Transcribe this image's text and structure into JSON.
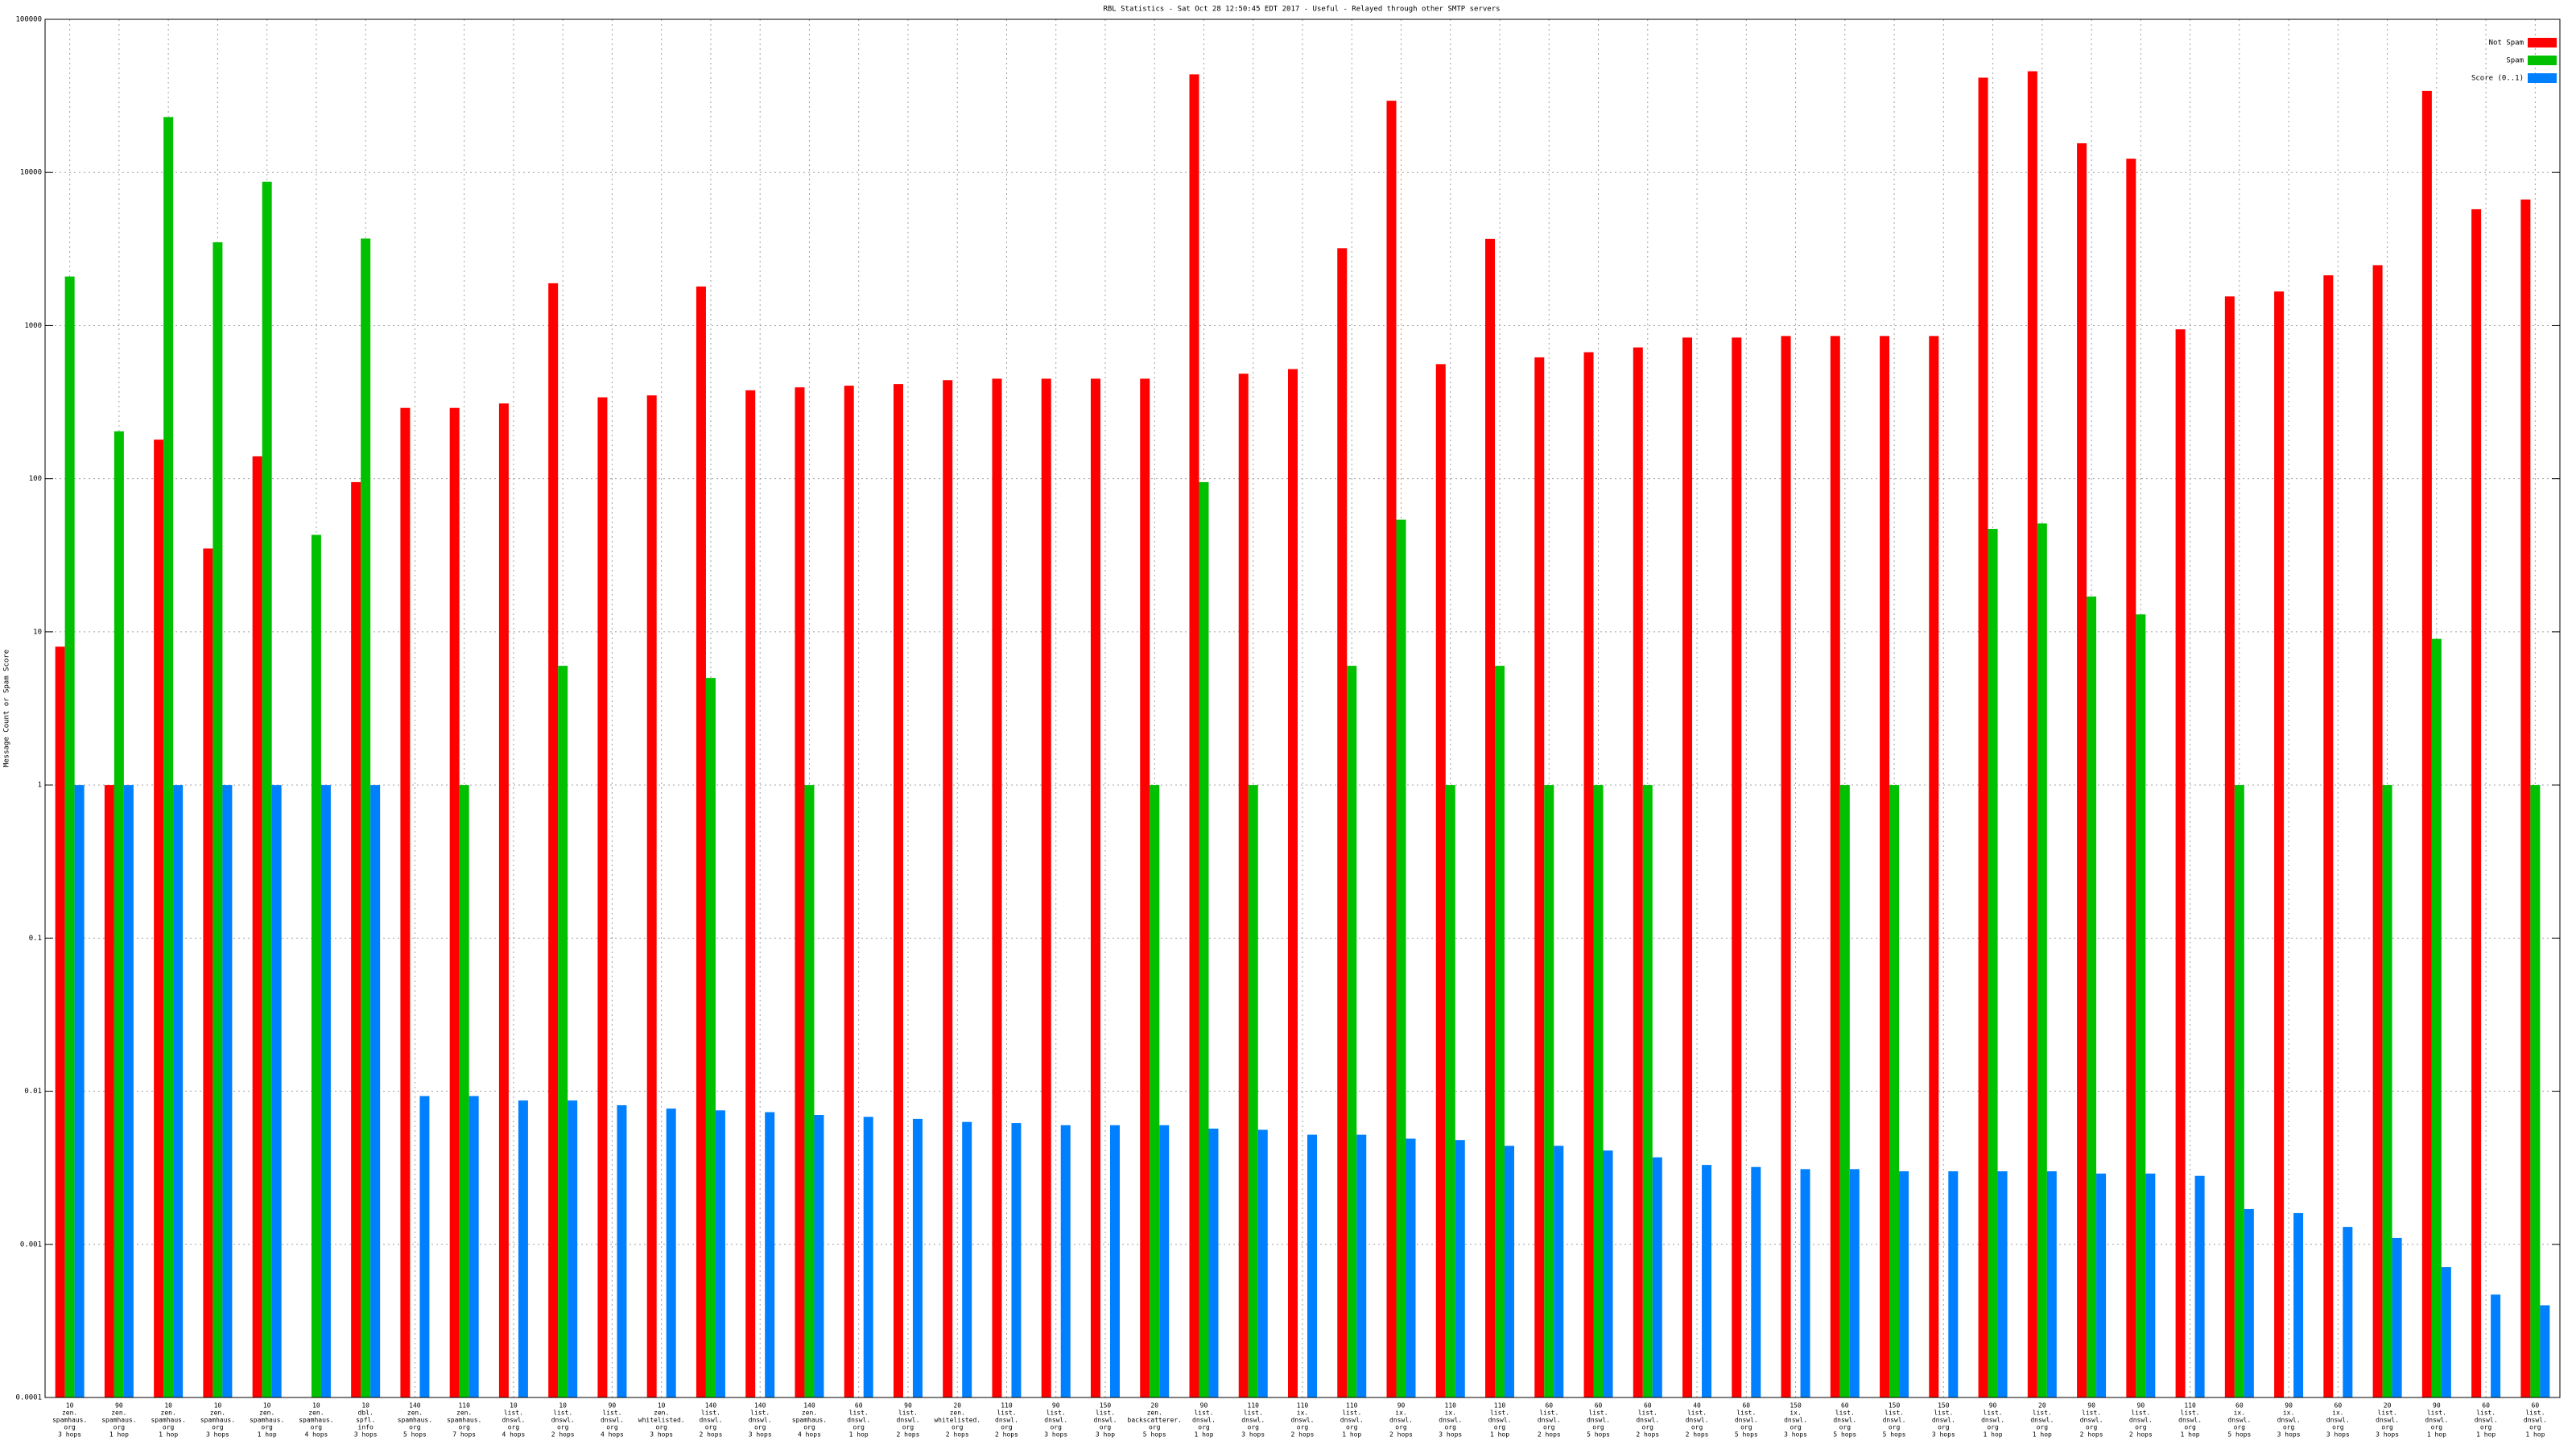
{
  "chart_data": {
    "type": "bar",
    "title": "RBL Statistics - Sat Oct 28 12:50:45 EDT 2017 - Useful - Relayed through other SMTP servers",
    "y_label": "Message Count or Spam Score",
    "log_y": true,
    "grid": true,
    "legend_position": "top-right",
    "ylim": [
      0.0001,
      100000
    ],
    "yticks": [
      0.0001,
      0.001,
      0.01,
      0.1,
      1,
      10,
      100,
      1000,
      10000,
      100000
    ],
    "categories": [
      [
        "10",
        "zen.",
        "spamhaus.",
        "org",
        "3 hops"
      ],
      [
        "90",
        "zen.",
        "spamhaus.",
        "org",
        "1 hop"
      ],
      [
        "10",
        "zen.",
        "spamhaus.",
        "org",
        "1 hop"
      ],
      [
        "10",
        "zen.",
        "spamhaus.",
        "org",
        "3 hops"
      ],
      [
        "10",
        "zen.",
        "spamhaus.",
        "org",
        "1 hop"
      ],
      [
        "10",
        "zen.",
        "spamhaus.",
        "org",
        "4 hops"
      ],
      [
        "10",
        "dbl.",
        "spfl.",
        "info",
        "3 hops"
      ],
      [
        "140",
        "zen.",
        "spamhaus.",
        "org",
        "5 hops"
      ],
      [
        "110",
        "zen.",
        "spamhaus.",
        "org",
        "7 hops"
      ],
      [
        "10",
        "list.",
        "dnswl.",
        "org",
        "4 hops"
      ],
      [
        "10",
        "list.",
        "dnswl.",
        "org",
        "2 hops"
      ],
      [
        "90",
        "list.",
        "dnswl.",
        "org",
        "4 hops"
      ],
      [
        "10",
        "zen.",
        "whitelisted.",
        "org",
        "3 hops"
      ],
      [
        "140",
        "list.",
        "dnswl.",
        "org",
        "2 hops"
      ],
      [
        "140",
        "list.",
        "dnswl.",
        "org",
        "3 hops"
      ],
      [
        "140",
        "zen.",
        "spamhaus.",
        "org",
        "4 hops"
      ],
      [
        "60",
        "list.",
        "dnswl.",
        "org",
        "1 hop"
      ],
      [
        "90",
        "list.",
        "dnswl.",
        "org",
        "2 hops"
      ],
      [
        "20",
        "zen.",
        "whitelisted.",
        "org",
        "2 hops"
      ],
      [
        "110",
        "list.",
        "dnswl.",
        "org",
        "2 hops"
      ],
      [
        "90",
        "list.",
        "dnswl.",
        "org",
        "3 hops"
      ],
      [
        "150",
        "list.",
        "dnswl.",
        "org",
        "3 hop"
      ],
      [
        "20",
        "zen.",
        "backscatterer.",
        "org",
        "5 hops"
      ],
      [
        "90",
        "list.",
        "dnswl.",
        "org",
        "1 hop"
      ],
      [
        "110",
        "list.",
        "dnswl.",
        "org",
        "3 hops"
      ],
      [
        "110",
        "ix.",
        "dnswl.",
        "org",
        "2 hops"
      ],
      [
        "110",
        "list.",
        "dnswl.",
        "org",
        "1 hop"
      ],
      [
        "90",
        "ix.",
        "dnswl.",
        "org",
        "2 hops"
      ],
      [
        "110",
        "ix.",
        "dnswl.",
        "org",
        "3 hops"
      ],
      [
        "110",
        "list.",
        "dnswl.",
        "org",
        "1 hop"
      ],
      [
        "60",
        "list.",
        "dnswl.",
        "org",
        "2 hops"
      ],
      [
        "60",
        "list.",
        "dnswl.",
        "org",
        "5 hops"
      ],
      [
        "60",
        "list.",
        "dnswl.",
        "org",
        "2 hops"
      ],
      [
        "40",
        "list.",
        "dnswl.",
        "org",
        "2 hops"
      ],
      [
        "60",
        "list.",
        "dnswl.",
        "org",
        "5 hops"
      ],
      [
        "150",
        "ix.",
        "dnswl.",
        "org",
        "3 hops"
      ],
      [
        "60",
        "list.",
        "dnswl.",
        "org",
        "5 hops"
      ],
      [
        "150",
        "list.",
        "dnswl.",
        "org",
        "5 hops"
      ],
      [
        "150",
        "list.",
        "dnswl.",
        "org",
        "3 hops"
      ],
      [
        "90",
        "list.",
        "dnswl.",
        "org",
        "1 hop"
      ],
      [
        "20",
        "list.",
        "dnswl.",
        "org",
        "1 hop"
      ],
      [
        "90",
        "list.",
        "dnswl.",
        "org",
        "2 hops"
      ],
      [
        "90",
        "list.",
        "dnswl.",
        "org",
        "2 hops"
      ],
      [
        "110",
        "list.",
        "dnswl.",
        "org",
        "1 hop"
      ],
      [
        "60",
        "ix.",
        "dnswl.",
        "org",
        "5 hops"
      ],
      [
        "90",
        "ix.",
        "dnswl.",
        "org",
        "3 hops"
      ],
      [
        "60",
        "ix.",
        "dnswl.",
        "org",
        "3 hops"
      ],
      [
        "20",
        "list.",
        "dnswl.",
        "org",
        "3 hops"
      ],
      [
        "90",
        "list.",
        "dnswl.",
        "org",
        "1 hop"
      ],
      [
        "60",
        "list.",
        "dnswl.",
        "org",
        "1 hop"
      ],
      [
        "60",
        "list.",
        "dnswl.",
        "org",
        "1 hop"
      ]
    ],
    "series": [
      {
        "name": "Not Spam",
        "color": "#ff0000",
        "values": [
          8,
          1,
          180,
          35,
          140,
          null,
          95,
          290,
          290,
          310,
          1890,
          340,
          350,
          1800,
          378,
          395,
          405,
          415,
          440,
          450,
          450,
          450,
          450,
          43700,
          485,
          520,
          3200,
          29400,
          560,
          3680,
          620,
          670,
          720,
          835,
          835,
          855,
          855,
          855,
          855,
          41600,
          45800,
          15500,
          12300,
          945,
          1550,
          1670,
          2130,
          2480,
          34100,
          5750,
          6660
        ]
      },
      {
        "name": "Spam",
        "color": "#00c000",
        "values": [
          2090,
          204,
          23000,
          3500,
          8700,
          43,
          3700,
          null,
          1,
          null,
          6,
          null,
          null,
          5,
          null,
          1,
          null,
          null,
          null,
          null,
          null,
          null,
          1,
          95,
          1,
          null,
          6,
          54,
          1,
          6,
          1,
          1,
          1,
          null,
          null,
          null,
          1,
          1,
          null,
          47,
          51,
          17,
          13,
          null,
          1,
          null,
          null,
          1,
          9,
          null,
          1
        ]
      },
      {
        "name": "Score (0..1)",
        "color": "#0080ff",
        "values": [
          1,
          1,
          1,
          1,
          1,
          1,
          1,
          0.0093,
          0.0093,
          0.0087,
          0.0087,
          0.0081,
          0.0077,
          0.0075,
          0.0073,
          0.007,
          0.0068,
          0.0066,
          0.0063,
          0.0062,
          0.006,
          0.006,
          0.006,
          0.0057,
          0.0056,
          0.0052,
          0.0052,
          0.0049,
          0.0048,
          0.0044,
          0.0044,
          0.0041,
          0.0037,
          0.0033,
          0.0032,
          0.0031,
          0.0031,
          0.003,
          0.003,
          0.003,
          0.003,
          0.0029,
          0.0029,
          0.0028,
          0.0017,
          0.0016,
          0.0013,
          0.0011,
          0.00071,
          0.00047,
          0.0004
        ]
      }
    ]
  }
}
